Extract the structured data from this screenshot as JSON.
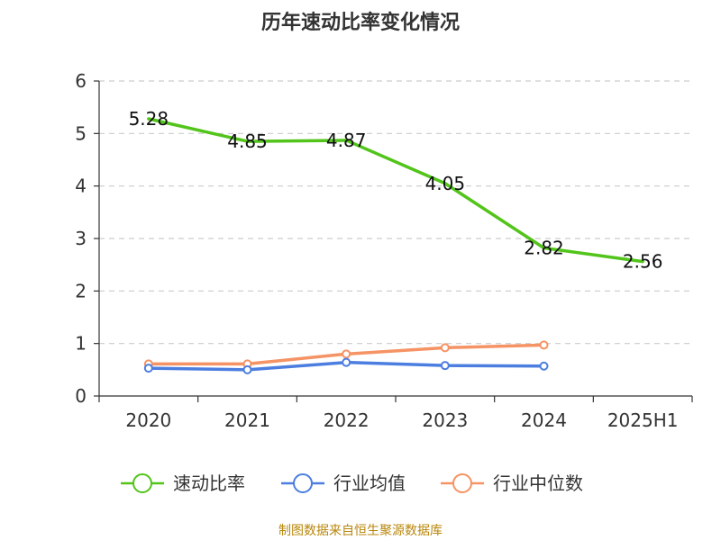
{
  "chart_data": {
    "type": "line",
    "title": "历年速动比率变化情况",
    "categories": [
      "2020",
      "2021",
      "2022",
      "2023",
      "2024",
      "2025H1"
    ],
    "ylim": [
      0,
      6
    ],
    "yticks": [
      0,
      1,
      2,
      3,
      4,
      5,
      6
    ],
    "grid": true,
    "legend_position": "bottom",
    "series": [
      {
        "name": "速动比率",
        "color": "#52c41a",
        "values": [
          5.28,
          4.85,
          4.87,
          4.05,
          2.82,
          2.56
        ],
        "show_labels": true
      },
      {
        "name": "行业均值",
        "color": "#4c7ee0",
        "values": [
          0.53,
          0.5,
          0.64,
          0.58,
          0.57,
          null
        ],
        "show_labels": false
      },
      {
        "name": "行业中位数",
        "color": "#f59364",
        "values": [
          0.61,
          0.61,
          0.8,
          0.92,
          0.97,
          null
        ],
        "show_labels": false
      }
    ],
    "data_labels": [
      "5.28",
      "4.85",
      "4.87",
      "4.05",
      "2.82",
      "2.56"
    ]
  },
  "source": "制图数据来自恒生聚源数据库"
}
